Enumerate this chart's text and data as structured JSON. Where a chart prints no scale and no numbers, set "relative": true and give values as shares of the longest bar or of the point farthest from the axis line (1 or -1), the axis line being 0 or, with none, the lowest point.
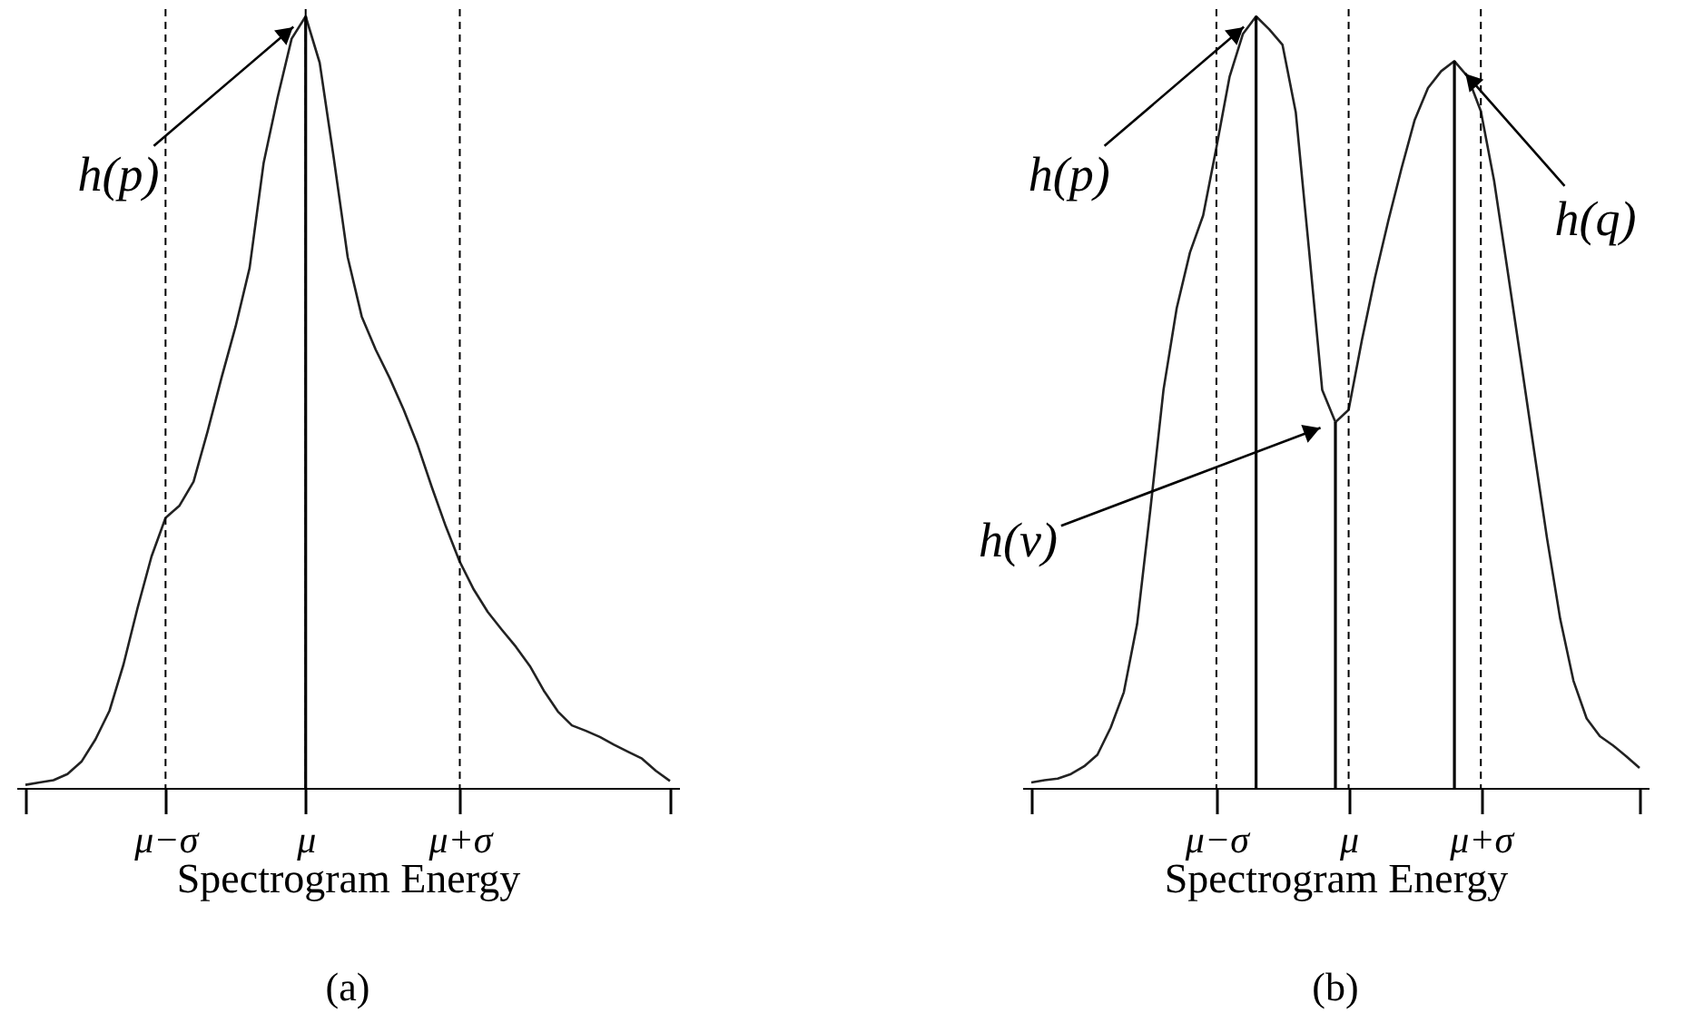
{
  "chart_data": [
    {
      "type": "line",
      "title": "(a)",
      "xlabel": "Spectrogram Energy",
      "relative": true,
      "categories": [
        null,
        null,
        null,
        null,
        null,
        null,
        null,
        null,
        null,
        null,
        "μ−σ",
        null,
        null,
        null,
        null,
        null,
        null,
        null,
        null,
        null,
        "μ",
        null,
        null,
        null,
        null,
        null,
        null,
        null,
        null,
        null,
        null,
        "μ+σ",
        null,
        null,
        null,
        null,
        null,
        null,
        null,
        null,
        null,
        null,
        null,
        null,
        null,
        null,
        null
      ],
      "series": [
        {
          "color": "#222222",
          "values": [
            0.004,
            0.007,
            0.01,
            0.018,
            0.034,
            0.063,
            0.1,
            0.16,
            0.233,
            0.3,
            0.35,
            0.366,
            0.397,
            0.462,
            0.532,
            0.598,
            0.674,
            0.81,
            0.895,
            0.971,
            1.0,
            0.94,
            0.817,
            0.688,
            0.611,
            0.568,
            0.531,
            0.49,
            0.444,
            0.39,
            0.339,
            0.293,
            0.257,
            0.228,
            0.205,
            0.183,
            0.158,
            0.126,
            0.099,
            0.081,
            0.074,
            0.066,
            0.056,
            0.047,
            0.038,
            0.022,
            0.009
          ]
        },
        {
          "type": "bar",
          "color": "#000000",
          "values": [
            null,
            null,
            null,
            null,
            null,
            null,
            null,
            null,
            null,
            null,
            null,
            null,
            null,
            null,
            null,
            null,
            null,
            null,
            null,
            null,
            1.0,
            null,
            null,
            null,
            null,
            null,
            null,
            null,
            null,
            null,
            null,
            null,
            null,
            null,
            null,
            null,
            null,
            null,
            null,
            null,
            null,
            null,
            null,
            null,
            null,
            null,
            null
          ]
        }
      ],
      "ref_lines": [
        {
          "axis": "x",
          "value": "μ−σ",
          "line_style": "dashed",
          "color": "#000000"
        },
        {
          "axis": "x",
          "value": "μ",
          "line_style": "dashed",
          "color": "#000000"
        },
        {
          "axis": "x",
          "value": "μ+σ",
          "line_style": "dashed",
          "color": "#000000"
        }
      ],
      "annotations": [
        "h(p)"
      ]
    },
    {
      "type": "line",
      "title": "(b)",
      "xlabel": "Spectrogram Energy",
      "relative": true,
      "categories": [
        null,
        null,
        null,
        null,
        null,
        null,
        null,
        null,
        null,
        null,
        null,
        null,
        null,
        null,
        "μ−σ",
        null,
        null,
        null,
        null,
        null,
        null,
        null,
        null,
        null,
        "μ",
        null,
        null,
        null,
        null,
        null,
        null,
        null,
        null,
        null,
        "μ+σ",
        null,
        null,
        null,
        null,
        null,
        null,
        null,
        null,
        null,
        null,
        null,
        null
      ],
      "series": [
        {
          "color": "#222222",
          "values": [
            0.007,
            0.01,
            0.012,
            0.018,
            0.028,
            0.043,
            0.078,
            0.124,
            0.212,
            0.36,
            0.516,
            0.622,
            0.694,
            0.742,
            0.83,
            0.922,
            0.977,
            1.0,
            0.983,
            0.963,
            0.876,
            0.698,
            0.516,
            0.474,
            0.49,
            0.58,
            0.662,
            0.735,
            0.803,
            0.866,
            0.907,
            0.929,
            0.942,
            0.922,
            0.877,
            0.787,
            0.673,
            0.557,
            0.44,
            0.324,
            0.219,
            0.139,
            0.09,
            0.067,
            0.055,
            0.041,
            0.026
          ]
        },
        {
          "type": "bar",
          "color": "#000000",
          "values": [
            null,
            null,
            null,
            null,
            null,
            null,
            null,
            null,
            null,
            null,
            null,
            null,
            null,
            null,
            null,
            null,
            null,
            1.0,
            null,
            null,
            null,
            null,
            null,
            0.474,
            null,
            null,
            null,
            null,
            null,
            null,
            null,
            null,
            0.942,
            null,
            null,
            null,
            null,
            null,
            null,
            null,
            null,
            null,
            null,
            null,
            null,
            null,
            null
          ]
        }
      ],
      "ref_lines": [
        {
          "axis": "x",
          "value": "μ−σ",
          "line_style": "dashed",
          "color": "#000000"
        },
        {
          "axis": "x",
          "value": "μ",
          "line_style": "dashed",
          "color": "#000000"
        },
        {
          "axis": "x",
          "value": "μ+σ",
          "line_style": "dashed",
          "color": "#000000"
        }
      ],
      "annotations": [
        "h(p)",
        "h(v)",
        "h(q)"
      ]
    }
  ]
}
